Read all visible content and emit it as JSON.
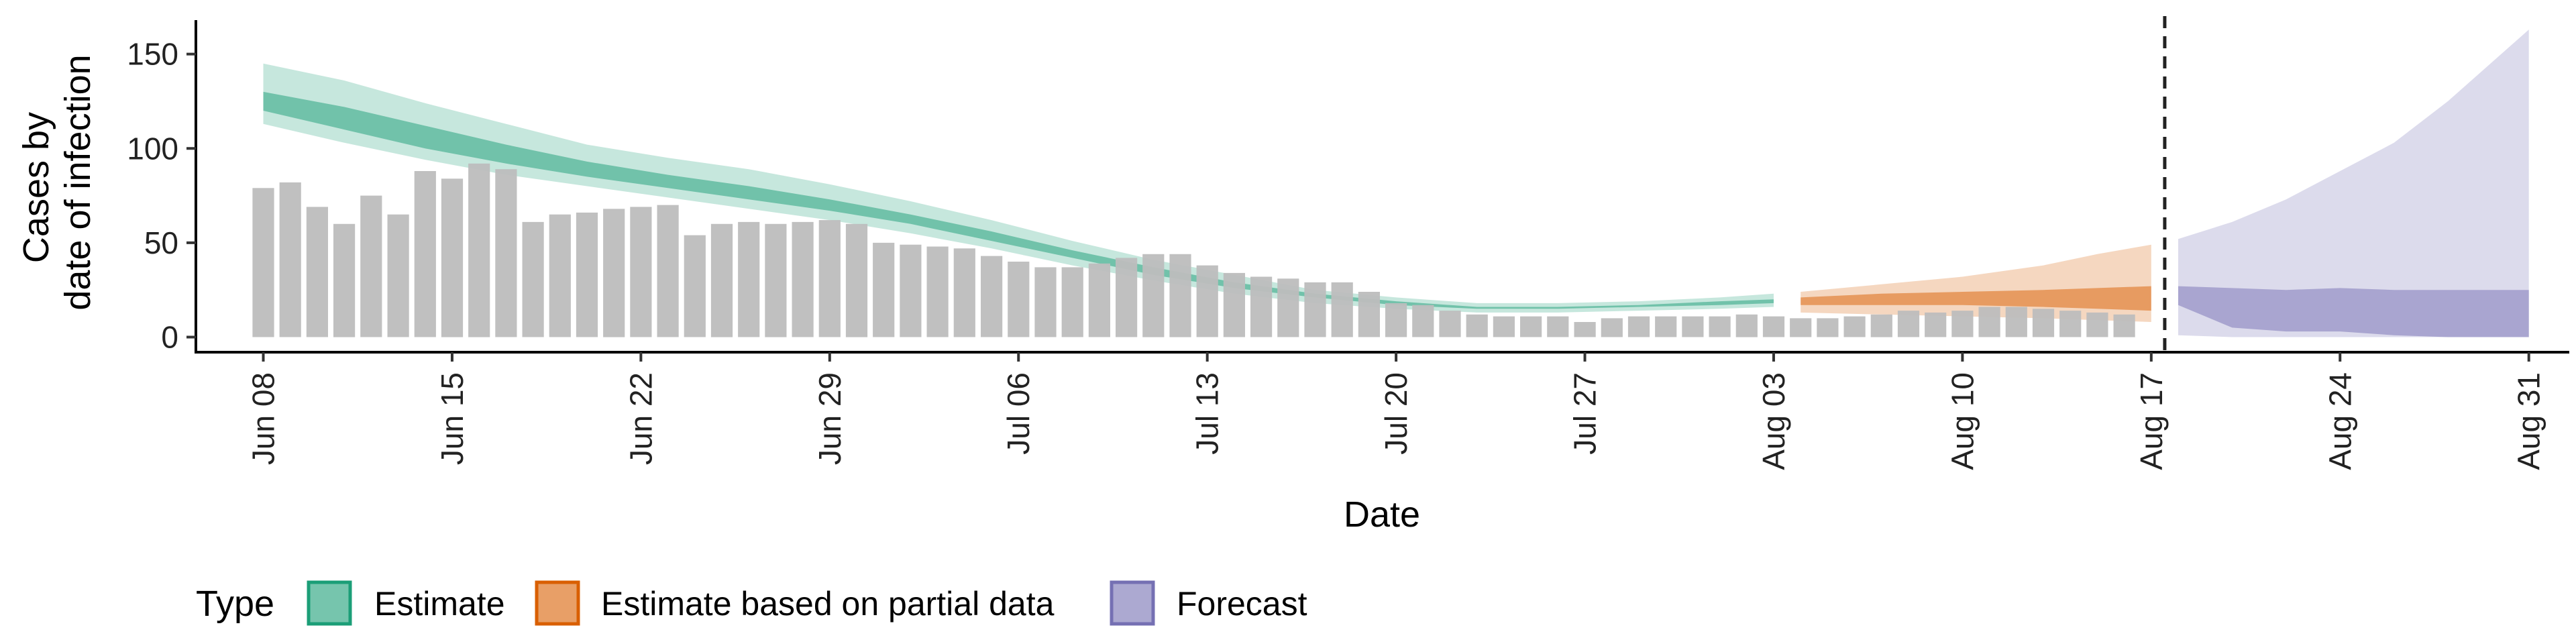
{
  "chart_data": {
    "type": "bar+area",
    "title": "",
    "xlabel": "Date",
    "ylabel_lines": [
      "Cases by",
      "date of infection"
    ],
    "ylim": [
      -8,
      168
    ],
    "y_ticks": [
      0,
      50,
      100,
      150
    ],
    "x_start": "Jun 08",
    "x_range_days": [
      -2.5,
      85.5
    ],
    "x_ticks": [
      {
        "day": 0,
        "label": "Jun 08"
      },
      {
        "day": 7,
        "label": "Jun 15"
      },
      {
        "day": 14,
        "label": "Jun 22"
      },
      {
        "day": 21,
        "label": "Jun 29"
      },
      {
        "day": 28,
        "label": "Jul 06"
      },
      {
        "day": 35,
        "label": "Jul 13"
      },
      {
        "day": 42,
        "label": "Jul 20"
      },
      {
        "day": 49,
        "label": "Jul 27"
      },
      {
        "day": 56,
        "label": "Aug 03"
      },
      {
        "day": 63,
        "label": "Aug 10"
      },
      {
        "day": 70,
        "label": "Aug 17"
      },
      {
        "day": 77,
        "label": "Aug 24"
      },
      {
        "day": 84,
        "label": "Aug 31"
      }
    ],
    "reported_cases": [
      79,
      82,
      69,
      60,
      75,
      65,
      88,
      84,
      92,
      89,
      61,
      65,
      66,
      68,
      69,
      70,
      54,
      60,
      61,
      60,
      61,
      62,
      60,
      50,
      49,
      48,
      47,
      43,
      40,
      37,
      37,
      39,
      42,
      44,
      44,
      38,
      34,
      32,
      31,
      29,
      29,
      24,
      18,
      17,
      14,
      12,
      11,
      11,
      11,
      8,
      10,
      11,
      11,
      11,
      11,
      12,
      11,
      10,
      10,
      11,
      12,
      14,
      13,
      14,
      16,
      16,
      15,
      14,
      13,
      12
    ],
    "vline_day": 70.5,
    "colors": {
      "estimate": "#1b9e77",
      "partial": "#d95f02",
      "forecast": "#7570b3",
      "bars": "#bdbdbd"
    },
    "series": [
      {
        "name": "Estimate",
        "x": [
          0,
          3,
          6,
          9,
          12,
          15,
          18,
          21,
          24,
          27,
          30,
          33,
          36,
          39,
          42,
          45,
          48,
          51,
          54,
          56
        ],
        "outer_low": [
          113,
          103,
          94,
          86,
          80,
          74,
          68,
          62,
          55,
          47,
          38,
          30,
          23,
          18,
          15,
          13,
          13,
          14,
          15,
          16
        ],
        "outer_high": [
          145,
          136,
          124,
          113,
          102,
          95,
          89,
          81,
          72,
          62,
          51,
          41,
          33,
          25,
          21,
          18,
          18,
          19,
          21,
          23
        ],
        "inner_low": [
          120,
          110,
          100,
          92,
          85,
          79,
          73,
          67,
          60,
          51,
          42,
          33,
          26,
          21,
          17,
          15,
          15,
          16,
          17,
          18
        ],
        "inner_high": [
          130,
          122,
          112,
          102,
          93,
          86,
          80,
          73,
          65,
          56,
          46,
          37,
          29,
          23,
          19,
          16,
          16,
          17,
          19,
          20
        ]
      },
      {
        "name": "Estimate based on partial data",
        "x": [
          57,
          60,
          63,
          66,
          68,
          70
        ],
        "outer_low": [
          13,
          12,
          11,
          10,
          9,
          8
        ],
        "outer_high": [
          24,
          28,
          32,
          38,
          44,
          49
        ],
        "inner_low": [
          17,
          17,
          17,
          16,
          15,
          14
        ],
        "inner_high": [
          21,
          23,
          24,
          25,
          26,
          27
        ]
      },
      {
        "name": "Forecast",
        "x": [
          71,
          73,
          75,
          77,
          79,
          81,
          84
        ],
        "outer_low": [
          1,
          0,
          0,
          0,
          0,
          0,
          0
        ],
        "outer_high": [
          52,
          61,
          73,
          88,
          103,
          125,
          163
        ],
        "inner_low": [
          17,
          5,
          3,
          3,
          1,
          0,
          0
        ],
        "inner_high": [
          27,
          26,
          25,
          26,
          25,
          25,
          25
        ]
      }
    ],
    "legend": {
      "title": "Type",
      "position": "bottom",
      "entries": [
        "Estimate",
        "Estimate based on partial data",
        "Forecast"
      ]
    }
  }
}
